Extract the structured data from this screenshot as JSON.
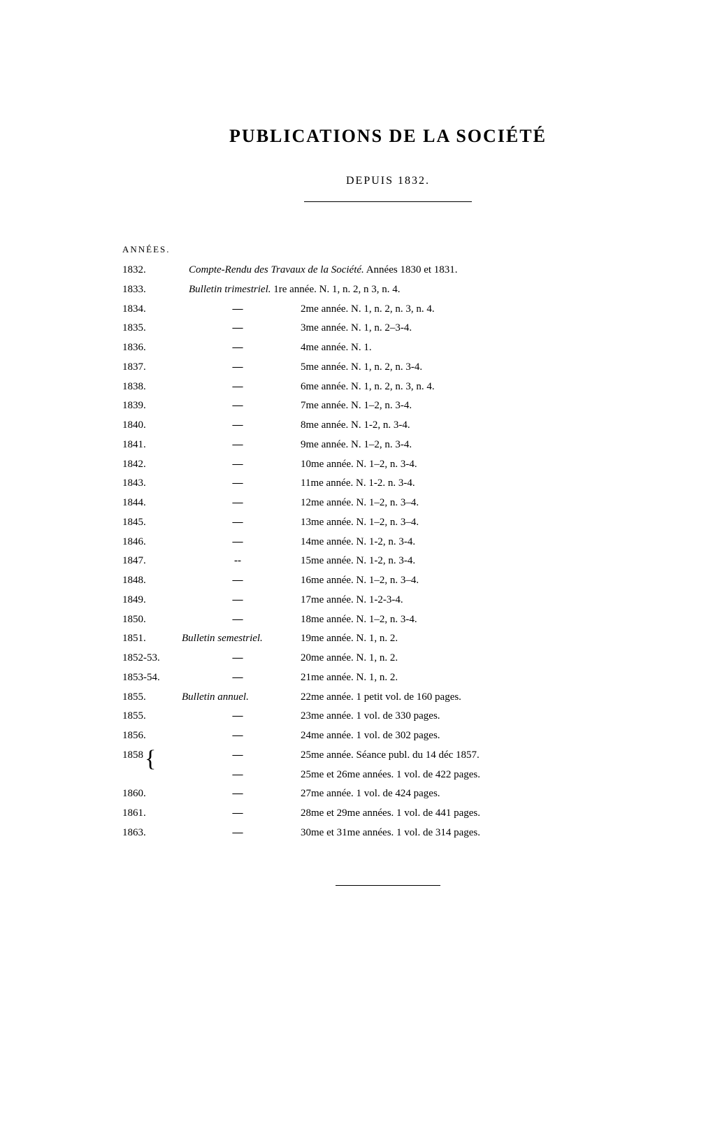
{
  "title": "PUBLICATIONS DE LA SOCIÉTÉ",
  "subtitle": "DEPUIS 1832.",
  "header_label": "ANNÉES.",
  "rows": [
    {
      "year": "1832.",
      "type": "",
      "type_italic": "Compte-Rendu des Travaux de la Société.",
      "desc": " Années 1830 et 1831.",
      "first": true
    },
    {
      "year": "1833.",
      "type": "",
      "type_italic": "Bulletin trimestriel.",
      "desc": " 1re année. N. 1, n. 2, n  3, n. 4.",
      "first": true
    },
    {
      "year": "1834.",
      "type": "—",
      "desc": "2me année. N. 1, n. 2, n. 3, n. 4."
    },
    {
      "year": "1835.",
      "type": "—",
      "desc": "3me année. N. 1, n. 2–3-4."
    },
    {
      "year": "1836.",
      "type": "—",
      "desc": "4me année. N. 1."
    },
    {
      "year": "1837.",
      "type": "—",
      "desc": "5me année. N. 1, n. 2, n. 3-4."
    },
    {
      "year": "1838.",
      "type": "—",
      "desc": "6me année. N. 1, n. 2, n. 3, n. 4."
    },
    {
      "year": "1839.",
      "type": "—",
      "desc": "7me année. N. 1–2, n. 3-4."
    },
    {
      "year": "1840.",
      "type": "—",
      "desc": "8me année. N. 1-2, n. 3-4."
    },
    {
      "year": "1841.",
      "type": "—",
      "desc": "9me année. N. 1–2, n. 3-4."
    },
    {
      "year": "1842.",
      "type": "—",
      "desc": "10me année. N. 1–2, n. 3-4."
    },
    {
      "year": "1843.",
      "type": "—",
      "desc": "11me année. N. 1-2. n. 3-4."
    },
    {
      "year": "1844.",
      "type": "—",
      "desc": "12me année. N. 1–2, n. 3–4."
    },
    {
      "year": "1845.",
      "type": "—",
      "desc": "13me année. N. 1–2, n. 3–4."
    },
    {
      "year": "1846.",
      "type": "—",
      "desc": "14me année. N. 1-2, n. 3-4."
    },
    {
      "year": "1847.",
      "type": "--",
      "desc": "15me année. N. 1-2, n. 3-4."
    },
    {
      "year": "1848.",
      "type": "—",
      "desc": "16me année. N. 1–2, n. 3–4."
    },
    {
      "year": "1849.",
      "type": "—",
      "desc": "17me année. N. 1-2-3-4."
    },
    {
      "year": "1850.",
      "type": "—",
      "desc": "18me année. N. 1–2, n. 3-4."
    },
    {
      "year": "1851.",
      "type_italic": "Bulletin semestriel.",
      "desc": "19me année. N. 1, n. 2."
    },
    {
      "year": "1852-53.",
      "type": "—",
      "desc": "20me année. N. 1, n. 2."
    },
    {
      "year": "1853-54.",
      "type": "—",
      "desc": "21me année. N. 1, n. 2."
    },
    {
      "year": "1855.",
      "type_italic": "Bulletin annuel.",
      "desc": "22me année. 1 petit vol. de 160 pages."
    },
    {
      "year": "1855.",
      "type": "—",
      "desc": "23me année. 1 vol. de 330 pages."
    },
    {
      "year": "1856.",
      "type": "—",
      "desc": "24me année. 1 vol. de 302 pages."
    },
    {
      "year": "1858",
      "brace": true,
      "type": "—",
      "desc": "25me année. Séance publ. du 14 déc  1857."
    },
    {
      "year": "",
      "type": "—",
      "desc": "25me et 26me années. 1 vol. de 422 pages."
    },
    {
      "year": "1860.",
      "type": "—",
      "desc": "27me année. 1 vol. de 424 pages."
    },
    {
      "year": "1861.",
      "type": "—",
      "desc": "28me et 29me années. 1 vol. de 441 pages."
    },
    {
      "year": "1863.",
      "type": "—",
      "desc": "30me et 31me années. 1 vol. de 314 pages."
    }
  ],
  "brace_char": "{",
  "brace_close": "}",
  "colors": {
    "text": "#000000",
    "background": "#ffffff"
  }
}
